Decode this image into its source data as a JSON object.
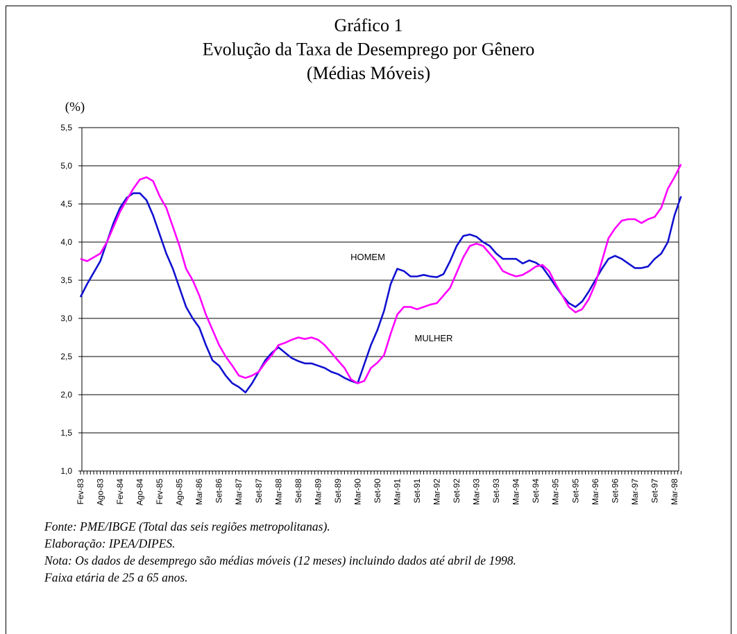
{
  "chart_data": {
    "type": "line",
    "title_lines": [
      "Gráfico 1",
      "Evolução da Taxa de Desemprego por Gênero",
      "(Médias Móveis)"
    ],
    "ylabel": "(%)",
    "ylim": [
      1.0,
      5.5
    ],
    "yticks": [
      {
        "value": 1.0,
        "label": "1,0"
      },
      {
        "value": 1.5,
        "label": "1,5"
      },
      {
        "value": 2.0,
        "label": "2,0"
      },
      {
        "value": 2.5,
        "label": "2,5"
      },
      {
        "value": 3.0,
        "label": "3,0"
      },
      {
        "value": 3.5,
        "label": "3,5"
      },
      {
        "value": 4.0,
        "label": "4,0"
      },
      {
        "value": 4.5,
        "label": "4,5"
      },
      {
        "value": 5.0,
        "label": "5,0"
      },
      {
        "value": 5.5,
        "label": "5,5"
      }
    ],
    "grid": true,
    "categories": [
      "Fev-83",
      null,
      null,
      "Ago-83",
      null,
      null,
      "Fev-84",
      null,
      null,
      "Ago-84",
      null,
      null,
      "Fev-85",
      null,
      null,
      "Ago-85",
      null,
      null,
      "Mar-86",
      null,
      null,
      "Set-86",
      null,
      null,
      "Mar-87",
      null,
      null,
      "Set-87",
      null,
      null,
      "Mar-88",
      null,
      null,
      "Set-88",
      null,
      null,
      "Mar-89",
      null,
      null,
      "Set-89",
      null,
      null,
      "Mar-90",
      null,
      null,
      "Set-90",
      null,
      null,
      "Mar-91",
      null,
      null,
      "Set-91",
      null,
      null,
      "Mar-92",
      null,
      null,
      "Set-92",
      null,
      null,
      "Mar-93",
      null,
      null,
      "Set-93",
      null,
      null,
      "Mar-94",
      null,
      null,
      "Set-94",
      null,
      null,
      "Mar-95",
      null,
      null,
      "Set-95",
      null,
      null,
      "Mar-96",
      null,
      null,
      "Set-96",
      null,
      null,
      "Mar-97",
      null,
      null,
      "Set-97",
      null,
      null,
      "Mar-98",
      null
    ],
    "series": [
      {
        "name": "HOMEM",
        "color": "#1010d0",
        "values": [
          3.28,
          3.45,
          3.6,
          3.75,
          4.0,
          4.25,
          4.45,
          4.58,
          4.64,
          4.64,
          4.55,
          4.35,
          4.1,
          3.85,
          3.65,
          3.4,
          3.15,
          3.0,
          2.88,
          2.65,
          2.45,
          2.38,
          2.25,
          2.15,
          2.1,
          2.03,
          2.15,
          2.3,
          2.45,
          2.55,
          2.62,
          2.55,
          2.48,
          2.44,
          2.41,
          2.41,
          2.38,
          2.35,
          2.3,
          2.27,
          2.22,
          2.18,
          2.15,
          2.4,
          2.65,
          2.85,
          3.1,
          3.45,
          3.65,
          3.62,
          3.55,
          3.55,
          3.57,
          3.55,
          3.54,
          3.58,
          3.75,
          3.95,
          4.08,
          4.1,
          4.07,
          4.0,
          3.95,
          3.85,
          3.78,
          3.78,
          3.78,
          3.72,
          3.76,
          3.73,
          3.67,
          3.55,
          3.42,
          3.3,
          3.2,
          3.15,
          3.22,
          3.35,
          3.5,
          3.65,
          3.78,
          3.82,
          3.78,
          3.72,
          3.66,
          3.66,
          3.68,
          3.78,
          3.85,
          4.0,
          4.35,
          4.6
        ]
      },
      {
        "name": "MULHER",
        "color": "#ff00ff",
        "values": [
          3.78,
          3.75,
          3.8,
          3.85,
          4.0,
          4.2,
          4.4,
          4.55,
          4.7,
          4.82,
          4.85,
          4.8,
          4.6,
          4.45,
          4.2,
          3.95,
          3.65,
          3.5,
          3.3,
          3.05,
          2.85,
          2.65,
          2.5,
          2.38,
          2.25,
          2.22,
          2.25,
          2.3,
          2.42,
          2.52,
          2.65,
          2.68,
          2.72,
          2.75,
          2.73,
          2.75,
          2.72,
          2.65,
          2.55,
          2.45,
          2.35,
          2.2,
          2.15,
          2.18,
          2.35,
          2.42,
          2.52,
          2.8,
          3.05,
          3.15,
          3.15,
          3.12,
          3.15,
          3.18,
          3.2,
          3.3,
          3.4,
          3.6,
          3.8,
          3.95,
          3.98,
          3.95,
          3.85,
          3.75,
          3.62,
          3.58,
          3.55,
          3.57,
          3.62,
          3.68,
          3.7,
          3.62,
          3.45,
          3.3,
          3.15,
          3.08,
          3.12,
          3.25,
          3.45,
          3.75,
          4.05,
          4.18,
          4.28,
          4.3,
          4.3,
          4.25,
          4.3,
          4.33,
          4.45,
          4.7,
          4.85,
          5.02
        ]
      }
    ],
    "notes": [
      "Fonte: PME/IBGE (Total das seis regiões metropolitanas).",
      "Elaboração: IPEA/DIPES.",
      "Nota: Os dados de desemprego são médias móveis (12 meses) incluindo dados até abril de 1998.",
      "Faixa etária de 25 a 65 anos."
    ]
  }
}
